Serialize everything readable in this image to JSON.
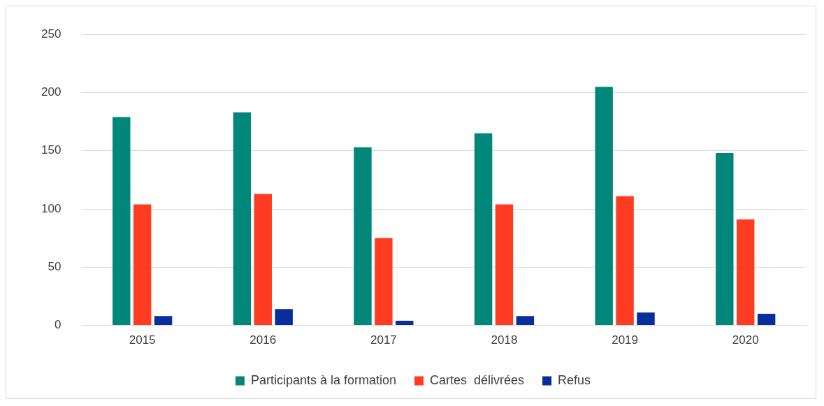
{
  "chart_data": {
    "type": "bar",
    "categories": [
      "2015",
      "2016",
      "2017",
      "2018",
      "2019",
      "2020"
    ],
    "series": [
      {
        "name": "Participants à la formation",
        "color": "#00877a",
        "values": [
          179,
          183,
          153,
          165,
          205,
          148
        ]
      },
      {
        "name": "Cartes  délivrées",
        "color": "#ff3b22",
        "values": [
          104,
          113,
          75,
          104,
          111,
          91
        ]
      },
      {
        "name": "Refus",
        "color": "#0a2d9e",
        "values": [
          8,
          14,
          4,
          8,
          11,
          10
        ]
      }
    ],
    "ylim": [
      0,
      250
    ],
    "yticks": [
      0,
      50,
      100,
      150,
      200,
      250
    ],
    "grid": "y",
    "legend": "bottom"
  }
}
